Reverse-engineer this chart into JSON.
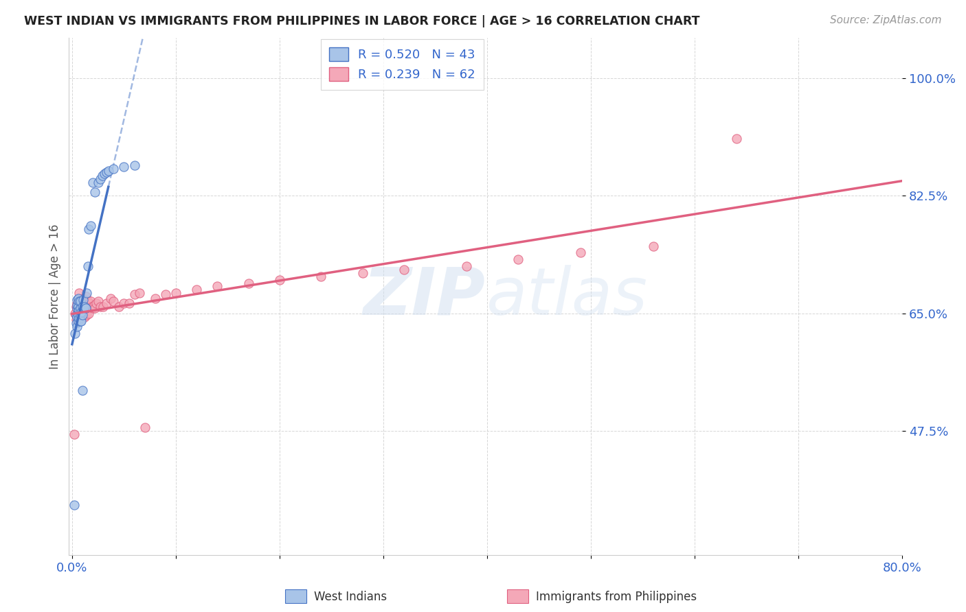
{
  "title": "WEST INDIAN VS IMMIGRANTS FROM PHILIPPINES IN LABOR FORCE | AGE > 16 CORRELATION CHART",
  "source": "Source: ZipAtlas.com",
  "ylabel": "In Labor Force | Age > 16",
  "y_ticks": [
    0.475,
    0.65,
    0.825,
    1.0
  ],
  "y_tick_labels": [
    "47.5%",
    "65.0%",
    "82.5%",
    "100.0%"
  ],
  "xlim": [
    -0.003,
    0.8
  ],
  "ylim": [
    0.29,
    1.06
  ],
  "watermark": "ZIPatlas",
  "legend_label1_west": "West Indians",
  "legend_label2_phil": "Immigrants from Philippines",
  "color_west": "#a8c4e8",
  "color_phil": "#f4a8b8",
  "color_west_line": "#4472c4",
  "color_phil_line": "#e06080",
  "color_west_edge": "#4472c4",
  "color_phil_edge": "#e06080",
  "background_color": "#ffffff",
  "grid_color": "#cccccc",
  "title_color": "#222222",
  "tick_color": "#3366cc",
  "source_color": "#999999",
  "west_x": [
    0.002,
    0.003,
    0.004,
    0.004,
    0.005,
    0.005,
    0.005,
    0.005,
    0.005,
    0.006,
    0.006,
    0.006,
    0.006,
    0.007,
    0.007,
    0.007,
    0.008,
    0.008,
    0.008,
    0.008,
    0.009,
    0.009,
    0.01,
    0.01,
    0.01,
    0.011,
    0.012,
    0.013,
    0.014,
    0.015,
    0.016,
    0.018,
    0.02,
    0.022,
    0.025,
    0.027,
    0.029,
    0.031,
    0.033,
    0.035,
    0.04,
    0.05,
    0.06
  ],
  "west_y": [
    0.365,
    0.62,
    0.635,
    0.648,
    0.63,
    0.645,
    0.658,
    0.662,
    0.67,
    0.638,
    0.648,
    0.66,
    0.672,
    0.642,
    0.655,
    0.668,
    0.638,
    0.648,
    0.658,
    0.668,
    0.638,
    0.652,
    0.648,
    0.535,
    0.66,
    0.67,
    0.66,
    0.658,
    0.68,
    0.72,
    0.775,
    0.78,
    0.845,
    0.83,
    0.845,
    0.85,
    0.855,
    0.858,
    0.86,
    0.862,
    0.865,
    0.868,
    0.87
  ],
  "phil_x": [
    0.002,
    0.003,
    0.004,
    0.004,
    0.005,
    0.005,
    0.006,
    0.006,
    0.007,
    0.007,
    0.008,
    0.008,
    0.009,
    0.009,
    0.01,
    0.01,
    0.011,
    0.011,
    0.012,
    0.012,
    0.013,
    0.013,
    0.014,
    0.014,
    0.015,
    0.015,
    0.016,
    0.016,
    0.017,
    0.018,
    0.019,
    0.02,
    0.021,
    0.022,
    0.023,
    0.025,
    0.027,
    0.03,
    0.033,
    0.037,
    0.04,
    0.045,
    0.05,
    0.055,
    0.06,
    0.065,
    0.07,
    0.08,
    0.09,
    0.1,
    0.12,
    0.14,
    0.17,
    0.2,
    0.24,
    0.28,
    0.32,
    0.38,
    0.43,
    0.49,
    0.56,
    0.64
  ],
  "phil_y": [
    0.47,
    0.65,
    0.64,
    0.66,
    0.658,
    0.665,
    0.658,
    0.668,
    0.665,
    0.68,
    0.655,
    0.67,
    0.648,
    0.66,
    0.655,
    0.668,
    0.66,
    0.672,
    0.645,
    0.66,
    0.665,
    0.675,
    0.648,
    0.66,
    0.658,
    0.668,
    0.65,
    0.665,
    0.66,
    0.668,
    0.66,
    0.658,
    0.662,
    0.658,
    0.665,
    0.668,
    0.66,
    0.66,
    0.665,
    0.672,
    0.668,
    0.66,
    0.665,
    0.665,
    0.678,
    0.68,
    0.48,
    0.672,
    0.678,
    0.68,
    0.685,
    0.69,
    0.695,
    0.7,
    0.705,
    0.71,
    0.715,
    0.72,
    0.73,
    0.74,
    0.75,
    0.91
  ]
}
